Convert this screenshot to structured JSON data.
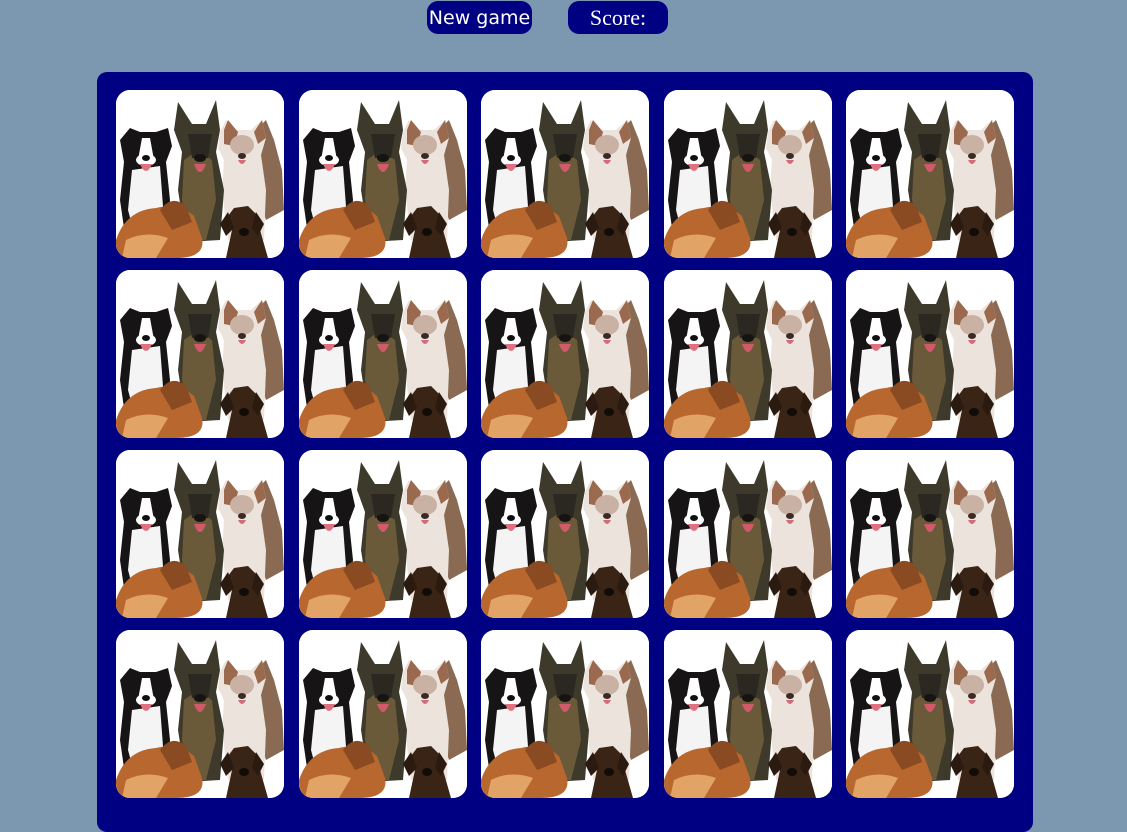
{
  "header": {
    "new_game_label": "New game",
    "score_label": "Score:"
  },
  "board": {
    "rows": 4,
    "columns": 5,
    "card_face": "dogs-group-picture"
  },
  "colors": {
    "page_background": "#7b98b0",
    "board_background": "#000083",
    "button_background": "#000083",
    "button_text": "#ffffff"
  }
}
